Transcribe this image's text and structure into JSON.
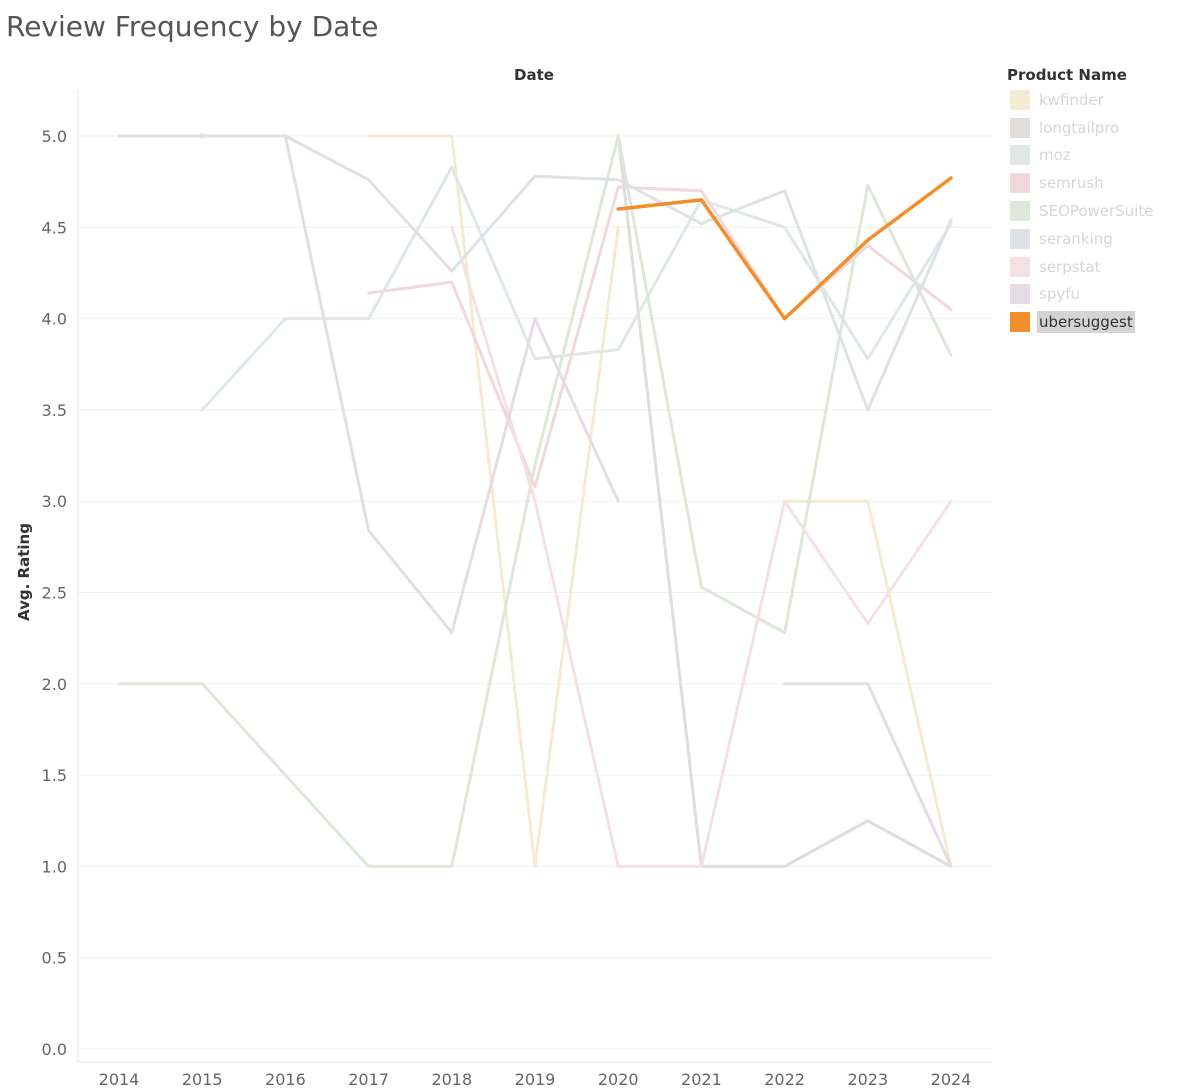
{
  "title": "Review Frequency by Date",
  "legend": {
    "title": "Product Name",
    "highlighted": "ubersuggest"
  },
  "chart_data": {
    "type": "line",
    "title": "Review Frequency by Date",
    "xlabel": "Date",
    "ylabel": "Avg. Rating",
    "ylim": [
      0,
      5.3
    ],
    "yticks": [
      "0.0",
      "0.5",
      "1.0",
      "1.5",
      "2.0",
      "2.5",
      "3.0",
      "3.5",
      "4.0",
      "4.5",
      "5.0"
    ],
    "categories": [
      "2014",
      "2015",
      "2016",
      "2017",
      "2018",
      "2019",
      "2020",
      "2021",
      "2022",
      "2023",
      "2024"
    ],
    "grid": true,
    "legend_position": "right",
    "highlighted_series": "ubersuggest",
    "series": [
      {
        "name": "kwfinder",
        "color": "#f3ecd0",
        "values": [
          null,
          null,
          null,
          5.0,
          5.0,
          1.0,
          4.5,
          null,
          3.0,
          3.0,
          1.0
        ]
      },
      {
        "name": "longtailpro",
        "color": "#e1ddd8",
        "values": [
          null,
          null,
          null,
          null,
          null,
          null,
          5.0,
          1.0,
          1.0,
          1.25,
          1.0
        ]
      },
      {
        "name": "moz",
        "color": "#dfe8e4",
        "values": [
          null,
          3.5,
          4.0,
          4.0,
          4.83,
          3.78,
          3.83,
          4.65,
          4.5,
          3.78,
          4.52
        ]
      },
      {
        "name": "semrush",
        "color": "#f1d8dc",
        "values": [
          null,
          5.0,
          null,
          4.14,
          4.2,
          3.08,
          4.72,
          4.7,
          4.0,
          4.4,
          4.05
        ]
      },
      {
        "name": "SEOPowerSuite",
        "color": "#dde7da",
        "values": [
          2.0,
          2.0,
          1.5,
          1.0,
          1.0,
          3.2,
          5.0,
          2.53,
          2.28,
          4.73,
          3.8
        ]
      },
      {
        "name": "seranking",
        "color": "#dde2e8",
        "values": [
          5.0,
          5.0,
          5.0,
          4.76,
          4.26,
          4.78,
          4.76,
          4.52,
          4.7,
          3.5,
          4.54
        ]
      },
      {
        "name": "serpstat",
        "color": "#f4e1e4",
        "values": [
          null,
          null,
          null,
          null,
          4.5,
          3.0,
          1.0,
          1.0,
          3.0,
          2.33,
          3.0
        ]
      },
      {
        "name": "spyfu",
        "color": "#e4dde5",
        "values": [
          5.0,
          5.0,
          5.0,
          2.84,
          2.28,
          4.0,
          3.0,
          null,
          2.0,
          2.0,
          1.0
        ]
      },
      {
        "name": "ubersuggest",
        "color": "#f28e2b",
        "values": [
          null,
          null,
          null,
          null,
          null,
          null,
          4.6,
          4.65,
          4.0,
          4.43,
          4.77
        ]
      }
    ]
  }
}
